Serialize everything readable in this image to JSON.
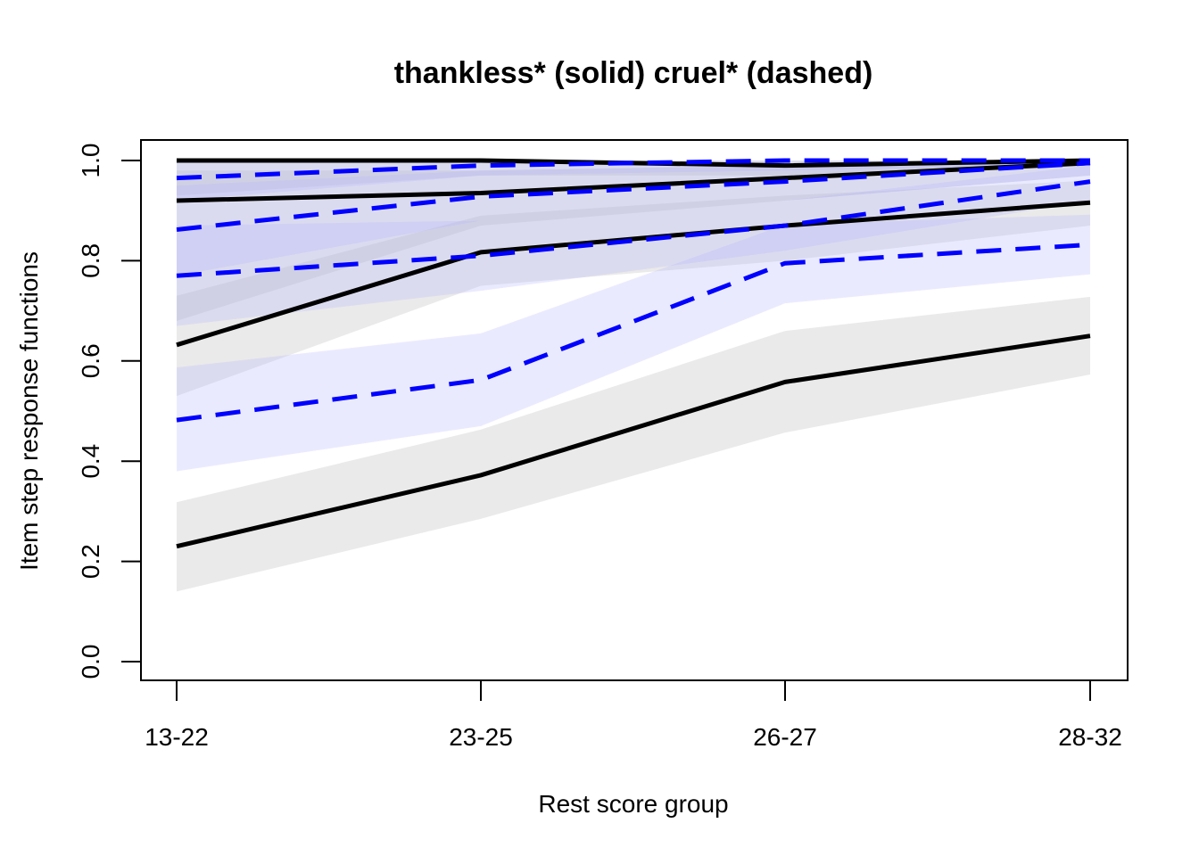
{
  "chart_data": {
    "type": "line",
    "title": "thankless* (solid) cruel* (dashed)",
    "xlabel": "Rest score group",
    "ylabel": "Item step response functions",
    "categories": [
      "13-22",
      "23-25",
      "26-27",
      "28-32"
    ],
    "ylim": [
      0,
      1
    ],
    "yticks": [
      "0.0",
      "0.2",
      "0.4",
      "0.6",
      "0.8",
      "1.0"
    ],
    "grid": false,
    "colors": {
      "thankless_line": "#000000",
      "thankless_band": "#bebebe",
      "cruel_line": "#0000ff",
      "cruel_band": "#b3b3ff"
    },
    "series": [
      {
        "item": "thankless",
        "style": "solid",
        "values": [
          1.0,
          1.0,
          0.99,
          1.0
        ],
        "lower": [
          0.93,
          0.97,
          0.97,
          0.99
        ],
        "upper": [
          1.0,
          1.0,
          1.0,
          1.0
        ]
      },
      {
        "item": "thankless",
        "style": "solid",
        "values": [
          0.92,
          0.935,
          0.965,
          0.995
        ],
        "lower": [
          0.68,
          0.87,
          0.92,
          0.97
        ],
        "upper": [
          0.98,
          0.98,
          0.99,
          1.0
        ]
      },
      {
        "item": "thankless",
        "style": "solid",
        "values": [
          0.632,
          0.817,
          0.87,
          0.916
        ],
        "lower": [
          0.53,
          0.75,
          0.8,
          0.87
        ],
        "upper": [
          0.73,
          0.89,
          0.93,
          0.96
        ]
      },
      {
        "item": "thankless",
        "style": "solid",
        "values": [
          0.23,
          0.372,
          0.558,
          0.65
        ],
        "lower": [
          0.14,
          0.285,
          0.457,
          0.573
        ],
        "upper": [
          0.318,
          0.463,
          0.66,
          0.728
        ]
      },
      {
        "item": "cruel",
        "style": "dashed",
        "values": [
          0.965,
          0.99,
          1.0,
          1.0
        ],
        "lower": [
          0.92,
          0.97,
          0.98,
          0.99
        ],
        "upper": [
          1.0,
          1.0,
          1.0,
          1.0
        ]
      },
      {
        "item": "cruel",
        "style": "dashed",
        "values": [
          0.862,
          0.928,
          0.958,
          0.995
        ],
        "lower": [
          0.77,
          0.88,
          0.92,
          0.97
        ],
        "upper": [
          0.95,
          0.98,
          0.99,
          1.0
        ]
      },
      {
        "item": "cruel",
        "style": "dashed",
        "values": [
          0.77,
          0.81,
          0.87,
          0.958
        ],
        "lower": [
          0.67,
          0.74,
          0.82,
          0.92
        ],
        "upper": [
          0.87,
          0.88,
          0.92,
          0.99
        ]
      },
      {
        "item": "cruel",
        "style": "dashed",
        "values": [
          0.482,
          0.562,
          0.795,
          0.832
        ],
        "lower": [
          0.38,
          0.47,
          0.715,
          0.773
        ],
        "upper": [
          0.587,
          0.655,
          0.872,
          0.892
        ]
      }
    ]
  }
}
